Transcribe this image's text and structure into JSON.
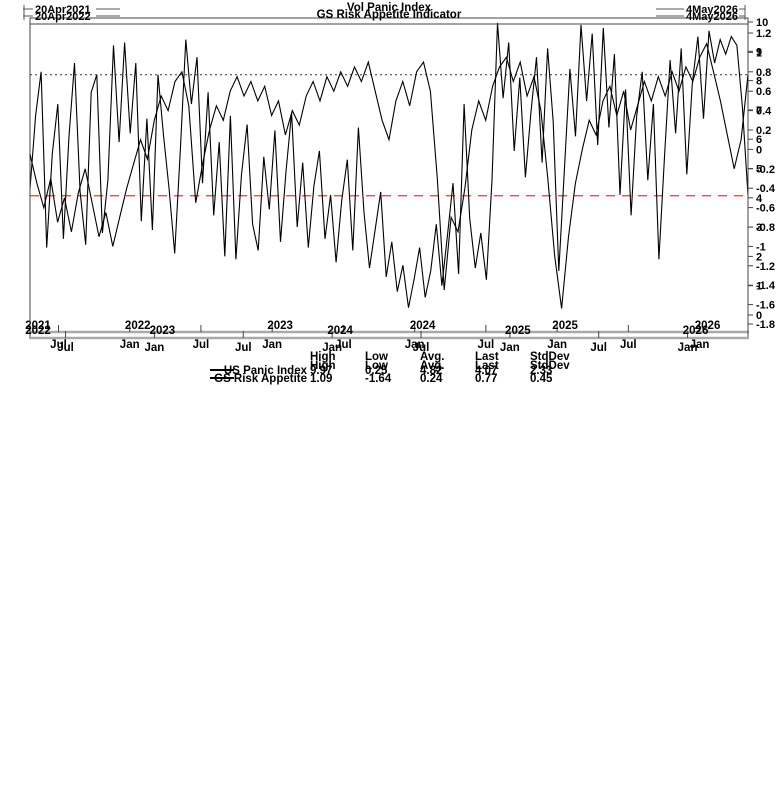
{
  "page": {
    "background": "#ffffff"
  },
  "chart_data": [
    {
      "type": "line",
      "title": "Vol Panic Index",
      "window_label_start": "20Apr2021",
      "window_label_end": "4May2026",
      "x_window": [
        2021.3,
        2026.34
      ],
      "ylim": [
        0,
        10
      ],
      "grid": false,
      "legend_position": "bottom",
      "y_ticks": [
        {
          "v": 10,
          "label": "10"
        },
        {
          "v": 9,
          "label": "9"
        },
        {
          "v": 8,
          "label": "8"
        },
        {
          "v": 7,
          "label": "7"
        },
        {
          "v": 6,
          "label": "6"
        },
        {
          "v": 5,
          "label": "5"
        },
        {
          "v": 4,
          "label": "4"
        },
        {
          "v": 3,
          "label": "3"
        },
        {
          "v": 2,
          "label": "2"
        },
        {
          "v": 1,
          "label": "1"
        },
        {
          "v": 0,
          "label": "0"
        }
      ],
      "x_ticks": [
        {
          "t": 2021.5,
          "label": "Jul"
        },
        {
          "t": 2022.0,
          "label": "Jan"
        },
        {
          "t": 2022.5,
          "label": "Jul"
        },
        {
          "t": 2023.0,
          "label": "Jan"
        },
        {
          "t": 2023.5,
          "label": "Jul"
        },
        {
          "t": 2024.0,
          "label": "Jan"
        },
        {
          "t": 2024.5,
          "label": "Jul"
        },
        {
          "t": 2025.0,
          "label": "Jan"
        },
        {
          "t": 2025.5,
          "label": "Jul"
        },
        {
          "t": 2026.0,
          "label": "Jan"
        }
      ],
      "x_year_labels": [
        {
          "t": 2021.3,
          "label": "2021"
        },
        {
          "t": 2022.0,
          "label": "2022"
        },
        {
          "t": 2023.0,
          "label": "2023"
        },
        {
          "t": 2024.0,
          "label": "2024"
        },
        {
          "t": 2025.0,
          "label": "2025"
        },
        {
          "t": 2026.0,
          "label": "2026"
        }
      ],
      "ref_line": {
        "value": 4.07,
        "color": "#f0362c",
        "dash": "9 7",
        "width": 1.3
      },
      "series": [
        {
          "name": "US Panic Index",
          "color": "#000000",
          "values": [
            4.3,
            6.8,
            8.3,
            2.3,
            5.5,
            7.2,
            2.6,
            6.1,
            8.6,
            4.2,
            2.4,
            7.6,
            8.2,
            2.8,
            4.6,
            9.2,
            5.9,
            9.3,
            6.2,
            8.6,
            3.2,
            6.7,
            2.9,
            8.2,
            6.1,
            4.3,
            2.1,
            5.6,
            9.4,
            7.2,
            8.8,
            4.5,
            7.6,
            3.4,
            5.9,
            2.0,
            6.8,
            1.9,
            4.8,
            6.5,
            3.1,
            2.2,
            5.4,
            3.6,
            6.3,
            2.5,
            4.9,
            6.9,
            3.0,
            5.2,
            2.3,
            4.4,
            5.6,
            2.6,
            4.1,
            1.8,
            3.9,
            5.3,
            2.2,
            6.4,
            3.5,
            1.6,
            2.9,
            4.2,
            1.3,
            2.5,
            0.8,
            1.7,
            0.25,
            1.2,
            2.3,
            0.6,
            1.5,
            3.1,
            1.0,
            2.7,
            4.5,
            1.4,
            7.2,
            3.3,
            1.6,
            2.8,
            1.2,
            4.6,
            9.97,
            7.4,
            9.3,
            5.6,
            8.1,
            4.7,
            6.9,
            8.8,
            5.2,
            9.1,
            6.6,
            1.5,
            4.9,
            8.4,
            6.1,
            9.9,
            7.3,
            9.6,
            5.8,
            9.8,
            6.4,
            8.9,
            4.1,
            7.7,
            3.4,
            6.8,
            8.3,
            4.6,
            7.2,
            1.9,
            5.4,
            8.7,
            6.2,
            9.1,
            4.8,
            7.9,
            9.5,
            6.7,
            9.7,
            8.6,
            9.4,
            8.9,
            9.5,
            9.2,
            7.1,
            4.07
          ]
        }
      ],
      "stats": {
        "headers": [
          "High",
          "Low",
          "Avg.",
          "Last",
          "StdDev"
        ],
        "rows": [
          {
            "name": "US Panic Index",
            "values": [
              "9.97",
              "0.25",
              "4.82",
              "4.07",
              "2.33"
            ]
          }
        ]
      }
    },
    {
      "type": "line",
      "title": "GS Risk Appetite Indicator",
      "window_label_start": "20Apr2022",
      "window_label_end": "4May2026",
      "x_window": [
        2022.3,
        2026.34
      ],
      "ylim": [
        -1.8,
        1.2
      ],
      "grid": false,
      "legend_position": "bottom",
      "y_ticks": [
        {
          "v": 1.2,
          "label": "1.2"
        },
        {
          "v": 1.0,
          "label": "1"
        },
        {
          "v": 0.8,
          "label": "0.8"
        },
        {
          "v": 0.6,
          "label": "0.6"
        },
        {
          "v": 0.4,
          "label": "0.4"
        },
        {
          "v": 0.2,
          "label": "0.2"
        },
        {
          "v": 0.0,
          "label": "0"
        },
        {
          "v": -0.2,
          "label": "-0.2"
        },
        {
          "v": -0.4,
          "label": "-0.4"
        },
        {
          "v": -0.6,
          "label": "-0.6"
        },
        {
          "v": -0.8,
          "label": "-0.8"
        },
        {
          "v": -1.0,
          "label": "-1"
        },
        {
          "v": -1.2,
          "label": "-1.2"
        },
        {
          "v": -1.4,
          "label": "-1.4"
        },
        {
          "v": -1.6,
          "label": "-1.6"
        },
        {
          "v": -1.8,
          "label": "-1.8"
        }
      ],
      "x_ticks": [
        {
          "t": 2022.5,
          "label": "Jul"
        },
        {
          "t": 2023.0,
          "label": "Jan"
        },
        {
          "t": 2023.5,
          "label": "Jul"
        },
        {
          "t": 2024.0,
          "label": "Jan"
        },
        {
          "t": 2024.5,
          "label": "Jul"
        },
        {
          "t": 2025.0,
          "label": "Jan"
        },
        {
          "t": 2025.5,
          "label": "Jul"
        },
        {
          "t": 2026.0,
          "label": "Jan"
        }
      ],
      "x_year_labels": [
        {
          "t": 2022.3,
          "label": "2022"
        },
        {
          "t": 2023.0,
          "label": "2023"
        },
        {
          "t": 2024.0,
          "label": "2024"
        },
        {
          "t": 2025.0,
          "label": "2025"
        },
        {
          "t": 2026.0,
          "label": "2026"
        }
      ],
      "ref_line": {
        "value": 0.77,
        "color": "#333333",
        "dash": "2 3",
        "width": 1
      },
      "series": [
        {
          "name": "GS Risk Appetite",
          "color": "#000000",
          "values": [
            -0.05,
            -0.35,
            -0.6,
            -0.3,
            -0.75,
            -0.5,
            -0.85,
            -0.45,
            -0.2,
            -0.55,
            -0.9,
            -0.65,
            -1.0,
            -0.7,
            -0.4,
            -0.15,
            0.1,
            -0.1,
            0.3,
            0.55,
            0.4,
            0.7,
            0.8,
            0.45,
            -0.55,
            -0.15,
            0.2,
            0.45,
            0.3,
            0.6,
            0.75,
            0.55,
            0.7,
            0.5,
            0.65,
            0.35,
            0.5,
            0.15,
            0.4,
            0.25,
            0.55,
            0.7,
            0.5,
            0.75,
            0.6,
            0.8,
            0.65,
            0.85,
            0.7,
            0.9,
            0.6,
            0.3,
            0.1,
            0.5,
            0.7,
            0.45,
            0.8,
            0.9,
            0.6,
            -0.3,
            -1.45,
            -0.7,
            -0.85,
            -0.4,
            0.2,
            0.5,
            0.3,
            0.65,
            0.85,
            0.95,
            0.7,
            0.9,
            0.55,
            0.75,
            0.4,
            -0.3,
            -1.1,
            -1.64,
            -0.9,
            -0.35,
            0.0,
            0.3,
            0.15,
            0.5,
            0.65,
            0.35,
            0.6,
            0.2,
            0.45,
            0.7,
            0.5,
            0.75,
            0.55,
            0.8,
            0.6,
            0.85,
            0.7,
            0.95,
            1.09,
            0.8,
            0.5,
            0.15,
            -0.2,
            0.1,
            0.77
          ]
        }
      ],
      "stats": {
        "headers": [
          "High",
          "Low",
          "Avg.",
          "Last",
          "StdDev"
        ],
        "rows": [
          {
            "name": "GS Risk Appetite",
            "values": [
              "1.09",
              "-1.64",
              "0.24",
              "0.77",
              "0.45"
            ]
          }
        ]
      }
    }
  ]
}
